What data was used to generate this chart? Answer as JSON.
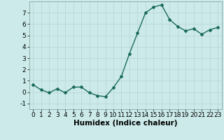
{
  "x": [
    0,
    1,
    2,
    3,
    4,
    5,
    6,
    7,
    8,
    9,
    10,
    11,
    12,
    13,
    14,
    15,
    16,
    17,
    18,
    19,
    20,
    21,
    22,
    23
  ],
  "y": [
    0.65,
    0.2,
    -0.05,
    0.3,
    -0.05,
    0.45,
    0.45,
    -0.05,
    -0.3,
    -0.4,
    0.4,
    1.4,
    3.4,
    5.2,
    7.0,
    7.5,
    7.7,
    6.4,
    5.8,
    5.4,
    5.6,
    5.1,
    5.5,
    5.7
  ],
  "line_color": "#1a6b5a",
  "marker": "D",
  "marker_size": 2,
  "xlabel": "Humidex (Indice chaleur)",
  "xlim": [
    -0.5,
    23.5
  ],
  "ylim": [
    -1.5,
    8.0
  ],
  "yticks": [
    -1,
    0,
    1,
    2,
    3,
    4,
    5,
    6,
    7
  ],
  "xticks": [
    0,
    1,
    2,
    3,
    4,
    5,
    6,
    7,
    8,
    9,
    10,
    11,
    12,
    13,
    14,
    15,
    16,
    17,
    18,
    19,
    20,
    21,
    22,
    23
  ],
  "bg_color": "#cceaea",
  "grid_color": "#b8d4d4",
  "spine_color": "#7a9999",
  "tick_fontsize": 6.5,
  "xlabel_fontsize": 7.5
}
